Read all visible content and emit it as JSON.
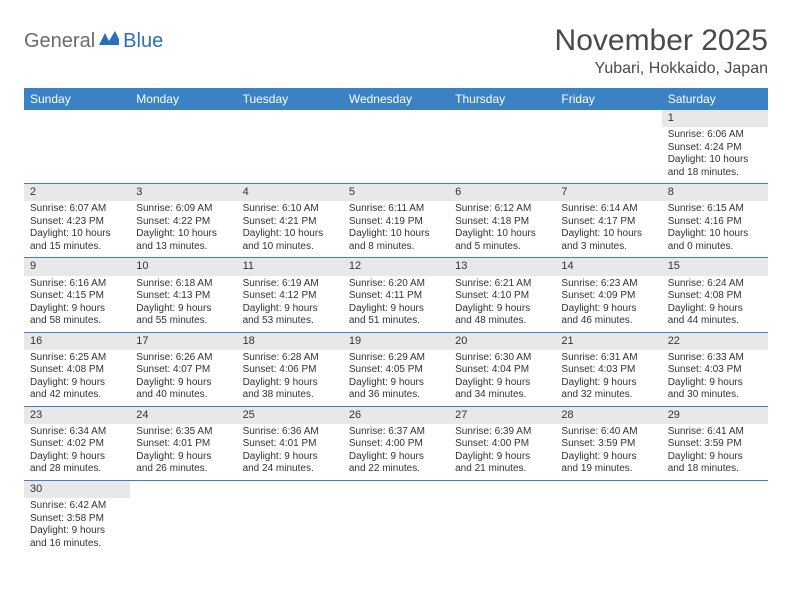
{
  "logo": {
    "text1": "General",
    "text2": "Blue"
  },
  "title": "November 2025",
  "location": "Yubari, Hokkaido, Japan",
  "colors": {
    "header_bg": "#3b82c4",
    "header_text": "#ffffff",
    "daynum_bg": "#e8e8e8",
    "cell_border": "#3b82c4",
    "logo_gray": "#6b6b6b",
    "logo_blue": "#2a70b8",
    "title_color": "#4a4a4a",
    "body_text": "#333333",
    "page_bg": "#ffffff"
  },
  "typography": {
    "title_fontsize": 30,
    "location_fontsize": 16,
    "dayheader_fontsize": 12,
    "daynum_fontsize": 11,
    "cell_fontsize": 10,
    "logo_fontsize": 20
  },
  "weekdays": [
    "Sunday",
    "Monday",
    "Tuesday",
    "Wednesday",
    "Thursday",
    "Friday",
    "Saturday"
  ],
  "weeks": [
    [
      null,
      null,
      null,
      null,
      null,
      null,
      {
        "day": "1",
        "sunrise": "Sunrise: 6:06 AM",
        "sunset": "Sunset: 4:24 PM",
        "daylight": "Daylight: 10 hours and 18 minutes."
      }
    ],
    [
      {
        "day": "2",
        "sunrise": "Sunrise: 6:07 AM",
        "sunset": "Sunset: 4:23 PM",
        "daylight": "Daylight: 10 hours and 15 minutes."
      },
      {
        "day": "3",
        "sunrise": "Sunrise: 6:09 AM",
        "sunset": "Sunset: 4:22 PM",
        "daylight": "Daylight: 10 hours and 13 minutes."
      },
      {
        "day": "4",
        "sunrise": "Sunrise: 6:10 AM",
        "sunset": "Sunset: 4:21 PM",
        "daylight": "Daylight: 10 hours and 10 minutes."
      },
      {
        "day": "5",
        "sunrise": "Sunrise: 6:11 AM",
        "sunset": "Sunset: 4:19 PM",
        "daylight": "Daylight: 10 hours and 8 minutes."
      },
      {
        "day": "6",
        "sunrise": "Sunrise: 6:12 AM",
        "sunset": "Sunset: 4:18 PM",
        "daylight": "Daylight: 10 hours and 5 minutes."
      },
      {
        "day": "7",
        "sunrise": "Sunrise: 6:14 AM",
        "sunset": "Sunset: 4:17 PM",
        "daylight": "Daylight: 10 hours and 3 minutes."
      },
      {
        "day": "8",
        "sunrise": "Sunrise: 6:15 AM",
        "sunset": "Sunset: 4:16 PM",
        "daylight": "Daylight: 10 hours and 0 minutes."
      }
    ],
    [
      {
        "day": "9",
        "sunrise": "Sunrise: 6:16 AM",
        "sunset": "Sunset: 4:15 PM",
        "daylight": "Daylight: 9 hours and 58 minutes."
      },
      {
        "day": "10",
        "sunrise": "Sunrise: 6:18 AM",
        "sunset": "Sunset: 4:13 PM",
        "daylight": "Daylight: 9 hours and 55 minutes."
      },
      {
        "day": "11",
        "sunrise": "Sunrise: 6:19 AM",
        "sunset": "Sunset: 4:12 PM",
        "daylight": "Daylight: 9 hours and 53 minutes."
      },
      {
        "day": "12",
        "sunrise": "Sunrise: 6:20 AM",
        "sunset": "Sunset: 4:11 PM",
        "daylight": "Daylight: 9 hours and 51 minutes."
      },
      {
        "day": "13",
        "sunrise": "Sunrise: 6:21 AM",
        "sunset": "Sunset: 4:10 PM",
        "daylight": "Daylight: 9 hours and 48 minutes."
      },
      {
        "day": "14",
        "sunrise": "Sunrise: 6:23 AM",
        "sunset": "Sunset: 4:09 PM",
        "daylight": "Daylight: 9 hours and 46 minutes."
      },
      {
        "day": "15",
        "sunrise": "Sunrise: 6:24 AM",
        "sunset": "Sunset: 4:08 PM",
        "daylight": "Daylight: 9 hours and 44 minutes."
      }
    ],
    [
      {
        "day": "16",
        "sunrise": "Sunrise: 6:25 AM",
        "sunset": "Sunset: 4:08 PM",
        "daylight": "Daylight: 9 hours and 42 minutes."
      },
      {
        "day": "17",
        "sunrise": "Sunrise: 6:26 AM",
        "sunset": "Sunset: 4:07 PM",
        "daylight": "Daylight: 9 hours and 40 minutes."
      },
      {
        "day": "18",
        "sunrise": "Sunrise: 6:28 AM",
        "sunset": "Sunset: 4:06 PM",
        "daylight": "Daylight: 9 hours and 38 minutes."
      },
      {
        "day": "19",
        "sunrise": "Sunrise: 6:29 AM",
        "sunset": "Sunset: 4:05 PM",
        "daylight": "Daylight: 9 hours and 36 minutes."
      },
      {
        "day": "20",
        "sunrise": "Sunrise: 6:30 AM",
        "sunset": "Sunset: 4:04 PM",
        "daylight": "Daylight: 9 hours and 34 minutes."
      },
      {
        "day": "21",
        "sunrise": "Sunrise: 6:31 AM",
        "sunset": "Sunset: 4:03 PM",
        "daylight": "Daylight: 9 hours and 32 minutes."
      },
      {
        "day": "22",
        "sunrise": "Sunrise: 6:33 AM",
        "sunset": "Sunset: 4:03 PM",
        "daylight": "Daylight: 9 hours and 30 minutes."
      }
    ],
    [
      {
        "day": "23",
        "sunrise": "Sunrise: 6:34 AM",
        "sunset": "Sunset: 4:02 PM",
        "daylight": "Daylight: 9 hours and 28 minutes."
      },
      {
        "day": "24",
        "sunrise": "Sunrise: 6:35 AM",
        "sunset": "Sunset: 4:01 PM",
        "daylight": "Daylight: 9 hours and 26 minutes."
      },
      {
        "day": "25",
        "sunrise": "Sunrise: 6:36 AM",
        "sunset": "Sunset: 4:01 PM",
        "daylight": "Daylight: 9 hours and 24 minutes."
      },
      {
        "day": "26",
        "sunrise": "Sunrise: 6:37 AM",
        "sunset": "Sunset: 4:00 PM",
        "daylight": "Daylight: 9 hours and 22 minutes."
      },
      {
        "day": "27",
        "sunrise": "Sunrise: 6:39 AM",
        "sunset": "Sunset: 4:00 PM",
        "daylight": "Daylight: 9 hours and 21 minutes."
      },
      {
        "day": "28",
        "sunrise": "Sunrise: 6:40 AM",
        "sunset": "Sunset: 3:59 PM",
        "daylight": "Daylight: 9 hours and 19 minutes."
      },
      {
        "day": "29",
        "sunrise": "Sunrise: 6:41 AM",
        "sunset": "Sunset: 3:59 PM",
        "daylight": "Daylight: 9 hours and 18 minutes."
      }
    ],
    [
      {
        "day": "30",
        "sunrise": "Sunrise: 6:42 AM",
        "sunset": "Sunset: 3:58 PM",
        "daylight": "Daylight: 9 hours and 16 minutes."
      },
      null,
      null,
      null,
      null,
      null,
      null
    ]
  ]
}
